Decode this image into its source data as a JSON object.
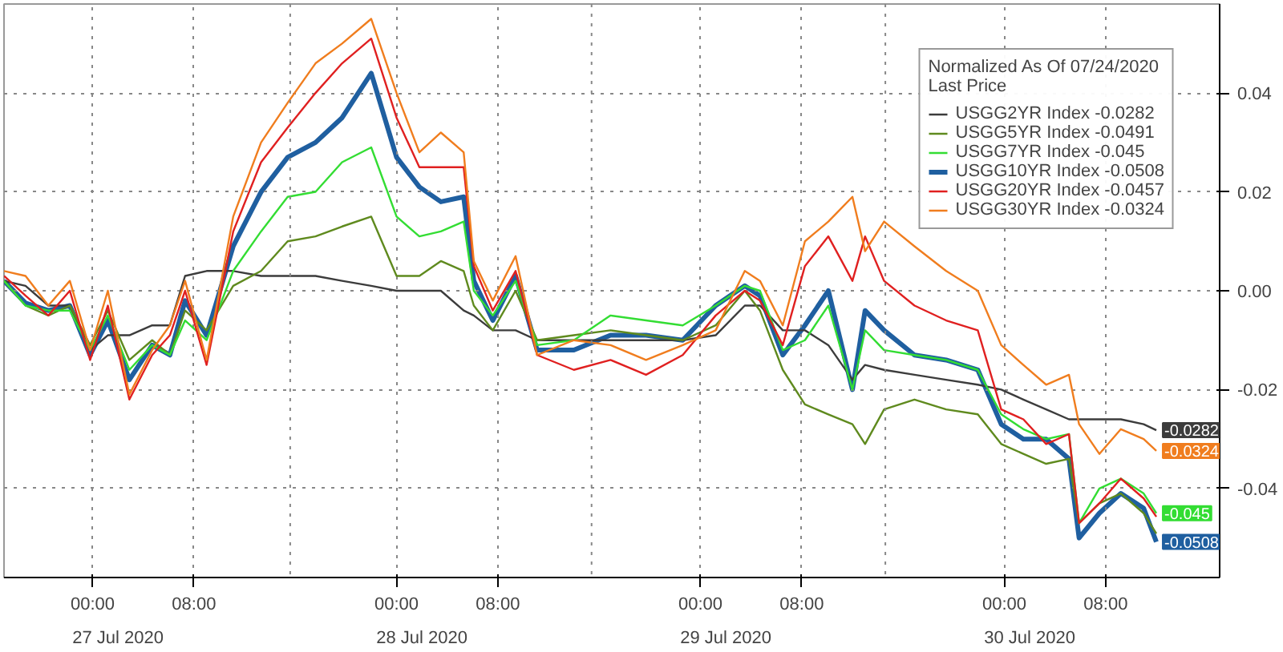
{
  "chart_data": {
    "type": "line",
    "legend_title": "Normalized As Of 07/24/2020\nLast Price",
    "x": [
      "2020-07-26T17:00",
      "2020-07-26T18:42",
      "2020-07-26T20:30",
      "2020-07-26T22:12",
      "2020-07-26T23:48",
      "2020-07-27T01:12",
      "2020-07-27T02:54",
      "2020-07-27T04:42",
      "2020-07-27T06:06",
      "2020-07-27T07:18",
      "2020-07-27T09:00",
      "2020-07-27T11:06",
      "2020-07-27T13:18",
      "2020-07-27T15:24",
      "2020-07-27T17:36",
      "2020-07-27T19:42",
      "2020-07-27T22:00",
      "2020-07-28T00:00",
      "2020-07-28T01:48",
      "2020-07-28T03:30",
      "2020-07-28T05:18",
      "2020-07-28T06:06",
      "2020-07-28T07:36",
      "2020-07-28T09:24",
      "2020-07-28T11:06",
      "2020-07-28T14:00",
      "2020-07-28T16:54",
      "2020-07-28T19:42",
      "2020-07-28T22:36",
      "2020-07-29T01:12",
      "2020-07-29T03:30",
      "2020-07-29T04:42",
      "2020-07-29T06:30",
      "2020-07-29T08:15",
      "2020-07-29T10:06",
      "2020-07-29T12:00",
      "2020-07-29T13:00",
      "2020-07-29T14:30",
      "2020-07-29T16:54",
      "2020-07-29T19:24",
      "2020-07-29T21:54",
      "2020-07-29T23:45",
      "2020-07-30T01:30",
      "2020-07-30T03:18",
      "2020-07-30T05:06",
      "2020-07-30T05:54",
      "2020-07-30T07:30",
      "2020-07-30T09:12",
      "2020-07-30T11:00",
      "2020-07-30T12:00"
    ],
    "xlim": [
      "2020-07-26T17:00",
      "2020-07-30T17:00"
    ],
    "xticks": [
      {
        "value": "2020-07-27T00:00",
        "label": "00:00"
      },
      {
        "value": "2020-07-27T08:00",
        "label": "08:00"
      },
      {
        "value": "2020-07-28T00:00",
        "label": "00:00"
      },
      {
        "value": "2020-07-28T08:00",
        "label": "08:00"
      },
      {
        "value": "2020-07-29T00:00",
        "label": "00:00"
      },
      {
        "value": "2020-07-29T08:00",
        "label": "08:00"
      },
      {
        "value": "2020-07-30T00:00",
        "label": "00:00"
      },
      {
        "value": "2020-07-30T08:00",
        "label": "08:00"
      }
    ],
    "annotations": [
      "27 Jul 2020",
      "28 Jul 2020",
      "29 Jul 2020",
      "30 Jul 2020"
    ],
    "ylim": [
      -0.058,
      0.058
    ],
    "yticks": [
      {
        "value": -0.04,
        "label": "-0.04"
      },
      {
        "value": -0.02,
        "label": "-0.02"
      },
      {
        "value": 0,
        "label": "0.00"
      },
      {
        "value": 0.02,
        "label": "0.02"
      },
      {
        "value": 0.04,
        "label": "0.04"
      }
    ],
    "ref_lines": [
      {
        "axis": "x",
        "value": "2020-07-27T15:36",
        "line_style": "dotted"
      },
      {
        "axis": "x",
        "value": "2020-07-28T15:24",
        "line_style": "dotted"
      },
      {
        "axis": "x",
        "value": "2020-07-29T14:36",
        "line_style": "dotted"
      }
    ],
    "grid": true,
    "legend": "top right",
    "line_style": "solid",
    "series": [
      {
        "name": "USGG2YR Index -0.0282",
        "color": "#3c3c3c",
        "values": [
          0.002,
          0.001,
          -0.003,
          -0.003,
          -0.012,
          -0.009,
          -0.009,
          -0.007,
          -0.007,
          0.003,
          0.004,
          0.004,
          0.003,
          0.003,
          0.003,
          0.002,
          0.001,
          0.0,
          0.0,
          0.0,
          -0.004,
          -0.005,
          -0.008,
          -0.008,
          -0.01,
          -0.01,
          -0.01,
          -0.01,
          -0.01,
          -0.009,
          -0.003,
          -0.003,
          -0.008,
          -0.008,
          -0.011,
          -0.018,
          -0.015,
          -0.016,
          -0.017,
          -0.018,
          -0.019,
          -0.02,
          -0.022,
          -0.024,
          -0.026,
          -0.026,
          -0.026,
          -0.026,
          -0.027,
          -0.0282
        ],
        "value_labels": [
          null,
          null,
          null,
          null,
          null,
          null,
          null,
          null,
          null,
          null,
          null,
          null,
          null,
          null,
          null,
          null,
          null,
          null,
          null,
          null,
          null,
          null,
          null,
          null,
          null,
          null,
          null,
          null,
          null,
          null,
          null,
          null,
          null,
          null,
          null,
          null,
          null,
          null,
          null,
          null,
          null,
          null,
          null,
          null,
          null,
          null,
          null,
          null,
          null,
          "-0.0282"
        ]
      },
      {
        "name": "USGG5YR Index -0.0491",
        "color": "#5f8a1e",
        "values": [
          0.002,
          -0.003,
          -0.005,
          -0.003,
          -0.011,
          -0.004,
          -0.014,
          -0.01,
          -0.013,
          -0.004,
          -0.008,
          0.001,
          0.004,
          0.01,
          0.011,
          0.013,
          0.015,
          0.003,
          0.003,
          0.006,
          0.004,
          -0.003,
          -0.008,
          0.0,
          -0.01,
          -0.009,
          -0.008,
          -0.009,
          -0.01,
          -0.007,
          0.0,
          -0.004,
          -0.016,
          -0.023,
          -0.025,
          -0.027,
          -0.031,
          -0.024,
          -0.022,
          -0.024,
          -0.025,
          -0.031,
          -0.033,
          -0.035,
          -0.034,
          -0.047,
          -0.043,
          -0.041,
          -0.045,
          -0.0491
        ]
      },
      {
        "name": "USGG7YR Index -0.045",
        "color": "#33dd33",
        "values": [
          0.002,
          -0.003,
          -0.004,
          -0.004,
          -0.012,
          -0.005,
          -0.016,
          -0.011,
          -0.013,
          -0.006,
          -0.01,
          0.004,
          0.012,
          0.019,
          0.02,
          0.026,
          0.029,
          0.015,
          0.011,
          0.012,
          0.014,
          0.0,
          -0.005,
          0.002,
          -0.011,
          -0.01,
          -0.005,
          -0.006,
          -0.007,
          -0.003,
          0.001,
          0.0,
          -0.012,
          -0.01,
          -0.003,
          -0.02,
          -0.008,
          -0.012,
          -0.013,
          -0.014,
          -0.016,
          -0.025,
          -0.028,
          -0.03,
          -0.029,
          -0.047,
          -0.04,
          -0.038,
          -0.041,
          -0.045
        ],
        "value_labels": [
          null,
          null,
          null,
          null,
          null,
          null,
          null,
          null,
          null,
          null,
          null,
          null,
          null,
          null,
          null,
          null,
          null,
          null,
          null,
          null,
          null,
          null,
          null,
          null,
          null,
          null,
          null,
          null,
          null,
          null,
          null,
          null,
          null,
          null,
          null,
          null,
          null,
          null,
          null,
          null,
          null,
          null,
          null,
          null,
          null,
          null,
          null,
          null,
          null,
          "-0.045"
        ]
      },
      {
        "name": "USGG10YR Index -0.0508",
        "color": "#1f5fa0",
        "values": [
          0.002,
          -0.0025,
          -0.004,
          -0.003,
          -0.013,
          -0.006,
          -0.018,
          -0.011,
          -0.013,
          -0.002,
          -0.009,
          0.009,
          0.02,
          0.027,
          0.03,
          0.035,
          0.044,
          0.027,
          0.021,
          0.018,
          0.019,
          0.002,
          -0.006,
          0.003,
          -0.012,
          -0.012,
          -0.009,
          -0.009,
          -0.01,
          -0.003,
          0.001,
          -0.001,
          -0.013,
          -0.007,
          0.0,
          -0.02,
          -0.004,
          -0.008,
          -0.013,
          -0.014,
          -0.016,
          -0.027,
          -0.03,
          -0.03,
          -0.034,
          -0.05,
          -0.045,
          -0.041,
          -0.044,
          -0.0508
        ],
        "value_labels": [
          null,
          null,
          null,
          null,
          null,
          null,
          null,
          null,
          null,
          null,
          null,
          null,
          null,
          null,
          null,
          null,
          null,
          null,
          null,
          null,
          null,
          null,
          null,
          null,
          null,
          null,
          null,
          null,
          null,
          null,
          null,
          null,
          null,
          null,
          null,
          null,
          null,
          null,
          null,
          null,
          null,
          null,
          null,
          null,
          null,
          null,
          null,
          null,
          null,
          "-0.0508"
        ]
      },
      {
        "name": "USGG20YR Index -0.0457",
        "color": "#e02020",
        "values": [
          0.003,
          -0.001,
          -0.005,
          0.0,
          -0.014,
          -0.003,
          -0.022,
          -0.013,
          -0.009,
          0.0,
          -0.015,
          0.012,
          0.026,
          0.033,
          0.04,
          0.046,
          0.051,
          0.035,
          0.025,
          0.025,
          0.025,
          0.005,
          -0.004,
          0.004,
          -0.013,
          -0.016,
          -0.014,
          -0.017,
          -0.013,
          -0.005,
          0.0,
          -0.002,
          -0.011,
          0.005,
          0.011,
          0.002,
          0.011,
          0.002,
          -0.003,
          -0.006,
          -0.008,
          -0.024,
          -0.026,
          -0.031,
          -0.029,
          -0.047,
          -0.043,
          -0.038,
          -0.042,
          -0.0457
        ]
      },
      {
        "name": "USGG30YR Index -0.0324",
        "color": "#f07d1e",
        "values": [
          0.004,
          0.003,
          -0.003,
          0.002,
          -0.012,
          0.0,
          -0.021,
          -0.012,
          -0.007,
          0.002,
          -0.014,
          0.015,
          0.03,
          0.038,
          0.046,
          0.05,
          0.055,
          0.04,
          0.028,
          0.032,
          0.028,
          0.006,
          -0.002,
          0.007,
          -0.013,
          -0.01,
          -0.011,
          -0.014,
          -0.011,
          -0.008,
          0.004,
          0.002,
          -0.007,
          0.01,
          0.014,
          0.019,
          0.008,
          0.014,
          0.009,
          0.004,
          0.0,
          -0.011,
          -0.015,
          -0.019,
          -0.017,
          -0.027,
          -0.033,
          -0.028,
          -0.03,
          -0.0324
        ],
        "value_labels": [
          null,
          null,
          null,
          null,
          null,
          null,
          null,
          null,
          null,
          null,
          null,
          null,
          null,
          null,
          null,
          null,
          null,
          null,
          null,
          null,
          null,
          null,
          null,
          null,
          null,
          null,
          null,
          null,
          null,
          null,
          null,
          null,
          null,
          null,
          null,
          null,
          null,
          null,
          null,
          null,
          null,
          null,
          null,
          null,
          null,
          null,
          null,
          null,
          null,
          "-0.0324"
        ]
      }
    ]
  }
}
